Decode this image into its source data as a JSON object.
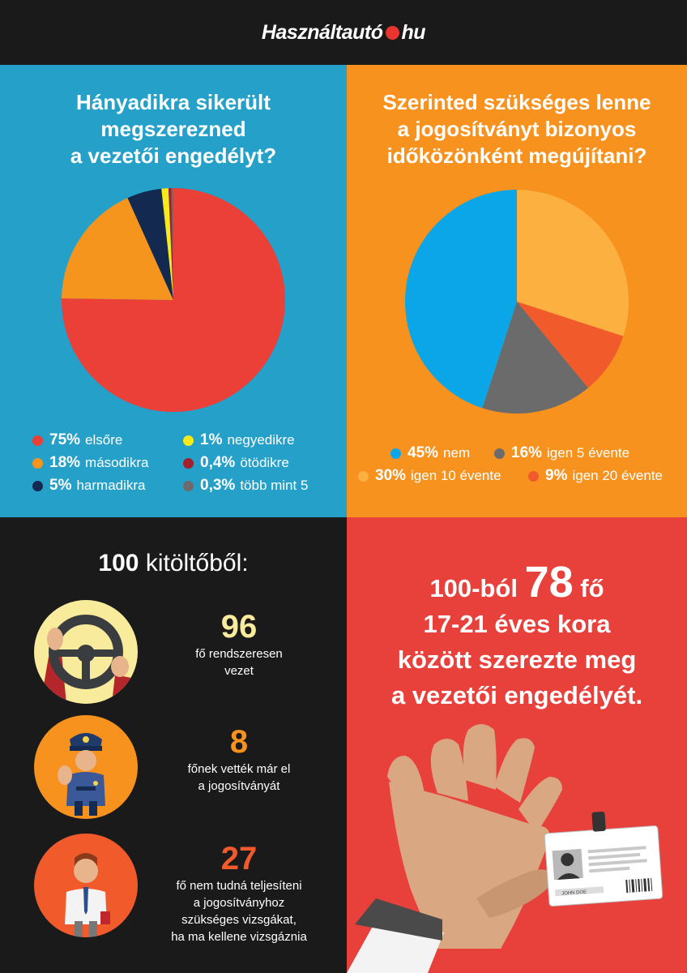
{
  "header": {
    "logo_part1": "Használtautó",
    "logo_part2": "hu"
  },
  "panel1": {
    "title_lines": [
      "Hányadikra sikerült",
      "megszerezned",
      "a vezetői engedélyt?"
    ],
    "legend": [
      {
        "pct": "75%",
        "label": "elsőre",
        "color": "#ea4038"
      },
      {
        "pct": "18%",
        "label": "másodikra",
        "color": "#f6951e"
      },
      {
        "pct": "5%",
        "label": "harmadikra",
        "color": "#14294f"
      },
      {
        "pct": "1%",
        "label": "negyedikre",
        "color": "#f6ea1a"
      },
      {
        "pct": "0,4%",
        "label": "ötödikre",
        "color": "#a31f2d"
      },
      {
        "pct": "0,3%",
        "label": "több mint 5",
        "color": "#6c6c6c"
      }
    ]
  },
  "panel2": {
    "title_lines": [
      "Szerinted szükséges lenne",
      "a jogosítványt bizonyos",
      "időközönként megújítani?"
    ],
    "legend": [
      {
        "pct": "45%",
        "label": "nem",
        "color": "#0aa6e8"
      },
      {
        "pct": "16%",
        "label": "igen 5 évente",
        "color": "#6b6b6b"
      },
      {
        "pct": "30%",
        "label": "igen 10 évente",
        "color": "#fbb040"
      },
      {
        "pct": "9%",
        "label": "igen 20 évente",
        "color": "#f15a2b"
      }
    ]
  },
  "chart_data": [
    {
      "type": "pie",
      "title": "Hányadikra sikerült megszerezned a vezetői engedélyt?",
      "categories": [
        "elsőre",
        "másodikra",
        "harmadikra",
        "negyedikre",
        "ötödikre",
        "több mint 5"
      ],
      "values": [
        75,
        18,
        5,
        1,
        0.4,
        0.3
      ],
      "colors": [
        "#ea4038",
        "#f6951e",
        "#14294f",
        "#f6ea1a",
        "#a31f2d",
        "#6c6c6c"
      ],
      "legend": "bottom"
    },
    {
      "type": "pie",
      "title": "Szerinted szükséges lenne a jogosítványt bizonyos időközönként megújítani?",
      "categories": [
        "nem",
        "igen 5 évente",
        "igen 10 évente",
        "igen 20 évente"
      ],
      "values": [
        45,
        16,
        30,
        9
      ],
      "colors": [
        "#0aa6e8",
        "#6b6b6b",
        "#fbb040",
        "#f15a2b"
      ],
      "legend": "bottom"
    }
  ],
  "panel3": {
    "heading_num": "100",
    "heading_text": "kitöltőből:",
    "stats": [
      {
        "num": "96",
        "color": "#f9eb9c",
        "lines": [
          "fő rendszeresen",
          "vezet"
        ]
      },
      {
        "num": "8",
        "color": "#f7921e",
        "lines": [
          "főnek vették már el",
          "a jogosítványát"
        ]
      },
      {
        "num": "27",
        "color": "#f15a2b",
        "lines": [
          "fő nem tudná teljesíteni",
          "a jogosítványhoz",
          "szükséges vizsgákat,",
          "ha ma kellene vizsgáznia"
        ]
      }
    ]
  },
  "panel4": {
    "prefix": "100-ból",
    "big_num": "78",
    "suffix": "fő",
    "lines": [
      "17-21 éves kora",
      "között szerezte meg",
      "a vezetői engedélyét."
    ],
    "card_name": "JOHN DOE"
  }
}
